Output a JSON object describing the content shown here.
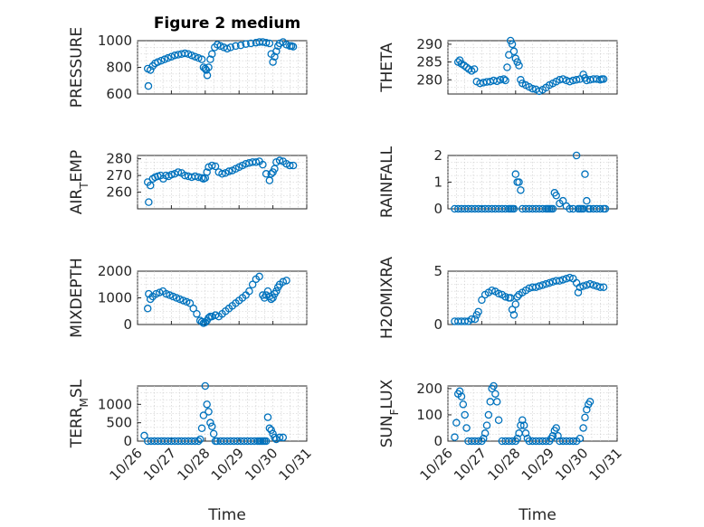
{
  "title": "Figure 2 medium",
  "colors": {
    "marker": "#0072BD",
    "axis": "#262626",
    "grid": "#c8c8c8"
  },
  "chart_data": [
    {
      "type": "scatter",
      "ylabel": "PRESSURE",
      "ylim": [
        600,
        1000
      ],
      "yticks": [
        "600",
        "800",
        "1000"
      ],
      "grid": true,
      "x": [
        0.3,
        0.32,
        0.38,
        0.45,
        0.52,
        0.6,
        0.7,
        0.8,
        0.9,
        1.0,
        1.1,
        1.2,
        1.3,
        1.4,
        1.5,
        1.6,
        1.7,
        1.8,
        1.9,
        1.95,
        2.0,
        2.03,
        2.06,
        2.1,
        2.15,
        2.2,
        2.28,
        2.36,
        2.45,
        2.55,
        2.65,
        2.75,
        2.9,
        3.05,
        3.2,
        3.35,
        3.5,
        3.6,
        3.7,
        3.8,
        3.9,
        3.95,
        4.0,
        4.05,
        4.1,
        4.15,
        4.2,
        4.3,
        4.4,
        4.5,
        4.55,
        4.6
      ],
      "y": [
        790,
        660,
        780,
        810,
        830,
        840,
        850,
        860,
        870,
        880,
        890,
        895,
        900,
        905,
        900,
        890,
        880,
        870,
        860,
        800,
        790,
        780,
        740,
        800,
        860,
        900,
        950,
        970,
        960,
        950,
        940,
        950,
        960,
        965,
        975,
        980,
        985,
        990,
        990,
        985,
        980,
        900,
        840,
        880,
        920,
        960,
        980,
        990,
        970,
        960,
        960,
        955
      ]
    },
    {
      "type": "scatter",
      "ylabel": "THETA",
      "ylim": [
        276,
        291
      ],
      "yticks": [
        "280",
        "285",
        "290"
      ],
      "grid": true,
      "x": [
        0.3,
        0.35,
        0.4,
        0.48,
        0.55,
        0.62,
        0.7,
        0.78,
        0.85,
        0.95,
        1.05,
        1.15,
        1.25,
        1.35,
        1.45,
        1.55,
        1.65,
        1.7,
        1.75,
        1.8,
        1.85,
        1.9,
        1.95,
        2.0,
        2.05,
        2.1,
        2.15,
        2.2,
        2.3,
        2.4,
        2.5,
        2.6,
        2.7,
        2.8,
        2.9,
        3.0,
        3.1,
        3.2,
        3.3,
        3.4,
        3.5,
        3.6,
        3.7,
        3.8,
        3.9,
        4.0,
        4.05,
        4.1,
        4.2,
        4.3,
        4.4,
        4.5,
        4.55,
        4.6
      ],
      "y": [
        285,
        285.5,
        284.5,
        284,
        283.5,
        283,
        282.5,
        283,
        279.5,
        279,
        279.2,
        279.4,
        279.5,
        279.8,
        279.6,
        280,
        280.2,
        279.8,
        283.5,
        287,
        291,
        290,
        288,
        286,
        285,
        284,
        280,
        279,
        278.5,
        278,
        277.5,
        277.3,
        276.8,
        277.2,
        277.8,
        278.5,
        279,
        279.5,
        280,
        280.2,
        279.8,
        279.5,
        279.8,
        280,
        280.2,
        281.5,
        280.5,
        279.8,
        280,
        280.2,
        280.2,
        280,
        280.2,
        280.2
      ]
    },
    {
      "type": "scatter",
      "ylabel": "AIR_TEMP",
      "ylim": [
        250,
        282
      ],
      "yticks": [
        "260",
        "270",
        "280"
      ],
      "grid": true,
      "x": [
        0.3,
        0.33,
        0.38,
        0.45,
        0.52,
        0.6,
        0.68,
        0.76,
        0.84,
        0.92,
        1.0,
        1.1,
        1.2,
        1.3,
        1.4,
        1.5,
        1.6,
        1.7,
        1.8,
        1.9,
        1.95,
        2.0,
        2.05,
        2.1,
        2.2,
        2.3,
        2.4,
        2.5,
        2.6,
        2.7,
        2.8,
        2.9,
        3.0,
        3.1,
        3.2,
        3.3,
        3.4,
        3.5,
        3.6,
        3.7,
        3.8,
        3.9,
        3.95,
        4.0,
        4.05,
        4.1,
        4.2,
        4.3,
        4.4,
        4.5,
        4.6
      ],
      "y": [
        266,
        254,
        264,
        268,
        269,
        269.5,
        270,
        268,
        270,
        269.5,
        270.5,
        271,
        272,
        271.5,
        270,
        269.5,
        269,
        269.5,
        269,
        268.5,
        268,
        268.5,
        272,
        275,
        276,
        275.5,
        272,
        271,
        271.5,
        272.5,
        273,
        274,
        275,
        276,
        277,
        277.5,
        278,
        278,
        278.5,
        276.5,
        271,
        267,
        271,
        272,
        274,
        278,
        279,
        278.5,
        277,
        276,
        276
      ]
    },
    {
      "type": "scatter",
      "ylabel": "RAINFALL",
      "ylim": [
        0,
        2
      ],
      "yticks": [
        "0",
        "1",
        "2"
      ],
      "grid": true,
      "x": [
        0.2,
        0.3,
        0.4,
        0.5,
        0.6,
        0.7,
        0.8,
        0.9,
        1.0,
        1.1,
        1.2,
        1.3,
        1.4,
        1.5,
        1.6,
        1.7,
        1.8,
        1.85,
        1.9,
        1.95,
        2.0,
        2.05,
        2.1,
        2.15,
        2.2,
        2.3,
        2.4,
        2.5,
        2.6,
        2.7,
        2.8,
        2.9,
        2.95,
        3.0,
        3.05,
        3.1,
        3.15,
        3.2,
        3.3,
        3.4,
        3.5,
        3.6,
        3.7,
        3.8,
        3.85,
        3.9,
        3.95,
        4.0,
        4.05,
        4.1,
        4.15,
        4.2,
        4.3,
        4.4,
        4.5,
        4.6,
        4.65
      ],
      "y": [
        0,
        0,
        0,
        0,
        0,
        0,
        0,
        0,
        0,
        0,
        0,
        0,
        0,
        0,
        0,
        0,
        0,
        0,
        0,
        0,
        1.3,
        1.0,
        1.0,
        0.7,
        0,
        0,
        0,
        0,
        0,
        0,
        0,
        0,
        0,
        0,
        0,
        0,
        0.6,
        0.5,
        0.2,
        0.3,
        0.1,
        0,
        0,
        2.0,
        0,
        0,
        0,
        0,
        1.3,
        0.3,
        0,
        0,
        0,
        0,
        0,
        0,
        0
      ]
    },
    {
      "type": "scatter",
      "ylabel": "MIXDEPTH",
      "ylim": [
        0,
        2000
      ],
      "yticks": [
        "0",
        "1000",
        "2000"
      ],
      "grid": true,
      "x": [
        0.3,
        0.33,
        0.38,
        0.45,
        0.55,
        0.65,
        0.75,
        0.85,
        0.95,
        1.05,
        1.15,
        1.25,
        1.35,
        1.45,
        1.55,
        1.65,
        1.75,
        1.85,
        1.9,
        1.95,
        2.0,
        2.05,
        2.1,
        2.15,
        2.2,
        2.3,
        2.4,
        2.5,
        2.6,
        2.7,
        2.8,
        2.9,
        3.0,
        3.1,
        3.2,
        3.3,
        3.4,
        3.5,
        3.6,
        3.7,
        3.75,
        3.8,
        3.85,
        3.9,
        3.95,
        4.0,
        4.05,
        4.1,
        4.15,
        4.2,
        4.3,
        4.4
      ],
      "y": [
        600,
        1150,
        950,
        1050,
        1150,
        1200,
        1250,
        1150,
        1100,
        1050,
        1000,
        950,
        900,
        850,
        800,
        600,
        400,
        150,
        100,
        50,
        80,
        150,
        250,
        300,
        300,
        350,
        300,
        400,
        500,
        600,
        700,
        800,
        900,
        1000,
        1100,
        1250,
        1500,
        1700,
        1800,
        1100,
        1000,
        1100,
        1250,
        1050,
        950,
        1000,
        1150,
        1250,
        1400,
        1500,
        1600,
        1650
      ]
    },
    {
      "type": "scatter",
      "ylabel": "H2OMIXRA",
      "ylim": [
        0,
        5
      ],
      "yticks": [
        "0",
        "5"
      ],
      "grid": true,
      "x": [
        0.2,
        0.3,
        0.4,
        0.5,
        0.6,
        0.7,
        0.8,
        0.85,
        0.9,
        1.0,
        1.1,
        1.2,
        1.3,
        1.4,
        1.5,
        1.6,
        1.7,
        1.8,
        1.85,
        1.9,
        1.95,
        2.0,
        2.05,
        2.1,
        2.2,
        2.3,
        2.4,
        2.5,
        2.6,
        2.7,
        2.8,
        2.9,
        3.0,
        3.1,
        3.2,
        3.3,
        3.4,
        3.5,
        3.6,
        3.7,
        3.8,
        3.85,
        3.9,
        4.0,
        4.1,
        4.2,
        4.3,
        4.4,
        4.5,
        4.6
      ],
      "y": [
        0.3,
        0.3,
        0.3,
        0.3,
        0.3,
        0.5,
        0.5,
        0.9,
        1.2,
        2.3,
        2.8,
        3.0,
        3.2,
        3.1,
        2.9,
        2.8,
        2.6,
        2.5,
        2.5,
        1.4,
        0.9,
        1.9,
        2.6,
        2.8,
        3.0,
        3.2,
        3.4,
        3.5,
        3.5,
        3.6,
        3.7,
        3.8,
        3.9,
        4.0,
        4.1,
        4.1,
        4.2,
        4.3,
        4.4,
        4.3,
        3.9,
        3.0,
        3.5,
        3.6,
        3.7,
        3.8,
        3.7,
        3.6,
        3.5,
        3.5
      ]
    },
    {
      "type": "scatter",
      "ylabel": "TERR_MSL",
      "ylim": [
        0,
        1500
      ],
      "yticks": [
        "0",
        "500",
        "1000"
      ],
      "grid": true,
      "x": [
        0.2,
        0.3,
        0.4,
        0.5,
        0.6,
        0.7,
        0.8,
        0.9,
        1.0,
        1.1,
        1.2,
        1.3,
        1.4,
        1.5,
        1.6,
        1.7,
        1.8,
        1.85,
        1.9,
        1.95,
        2.0,
        2.05,
        2.1,
        2.15,
        2.2,
        2.25,
        2.3,
        2.35,
        2.45,
        2.55,
        2.65,
        2.75,
        2.85,
        2.95,
        3.05,
        3.15,
        3.25,
        3.35,
        3.45,
        3.55,
        3.6,
        3.65,
        3.7,
        3.75,
        3.8,
        3.85,
        3.9,
        3.95,
        4.0,
        4.05,
        4.1,
        4.2,
        4.3
      ],
      "y": [
        150,
        0,
        0,
        0,
        0,
        0,
        0,
        0,
        0,
        0,
        0,
        0,
        0,
        0,
        0,
        0,
        0,
        50,
        350,
        700,
        1500,
        1000,
        800,
        500,
        400,
        200,
        0,
        0,
        0,
        0,
        0,
        0,
        0,
        0,
        0,
        0,
        0,
        0,
        0,
        0,
        0,
        0,
        0,
        0,
        0,
        650,
        350,
        300,
        200,
        100,
        50,
        100,
        100
      ]
    },
    {
      "type": "scatter",
      "ylabel": "SUN_FLUX",
      "ylim": [
        0,
        210
      ],
      "yticks": [
        "0",
        "100",
        "200"
      ],
      "grid": true,
      "x": [
        0.2,
        0.25,
        0.3,
        0.35,
        0.4,
        0.45,
        0.5,
        0.55,
        0.6,
        0.7,
        0.8,
        0.9,
        1.0,
        1.05,
        1.1,
        1.15,
        1.2,
        1.25,
        1.3,
        1.35,
        1.4,
        1.45,
        1.5,
        1.6,
        1.7,
        1.8,
        1.9,
        2.0,
        2.05,
        2.1,
        2.15,
        2.2,
        2.25,
        2.3,
        2.35,
        2.4,
        2.5,
        2.6,
        2.7,
        2.8,
        2.9,
        3.0,
        3.05,
        3.1,
        3.15,
        3.2,
        3.25,
        3.3,
        3.4,
        3.5,
        3.6,
        3.7,
        3.8,
        3.9,
        4.0,
        4.05,
        4.1,
        4.15,
        4.2
      ],
      "y": [
        15,
        70,
        180,
        190,
        170,
        140,
        100,
        50,
        0,
        0,
        0,
        0,
        0,
        10,
        30,
        60,
        100,
        150,
        200,
        210,
        180,
        150,
        80,
        0,
        0,
        0,
        0,
        0,
        10,
        30,
        60,
        80,
        60,
        30,
        10,
        0,
        0,
        0,
        0,
        0,
        0,
        0,
        10,
        20,
        40,
        50,
        20,
        0,
        0,
        0,
        0,
        0,
        0,
        10,
        50,
        90,
        120,
        140,
        150
      ]
    }
  ],
  "x_axis": {
    "ticks": [
      "10/26",
      "10/27",
      "10/28",
      "10/29",
      "10/30",
      "10/31"
    ],
    "xlim": [
      0,
      5
    ],
    "xlabel": "Time"
  }
}
